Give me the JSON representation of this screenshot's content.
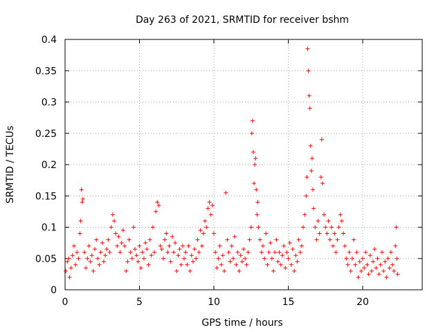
{
  "chart_data": {
    "type": "scatter",
    "title": "Day 263 of 2021, SRMTID for receiver bshm",
    "xlabel": "GPS time / hours",
    "ylabel": "SRMTID / TECUs",
    "xlim": [
      0,
      24
    ],
    "ylim": [
      0,
      0.4
    ],
    "xticks": [
      0,
      5,
      10,
      15,
      20
    ],
    "xtick_labels": [
      "0",
      "5",
      "10",
      "15",
      "20"
    ],
    "yticks": [
      0,
      0.05,
      0.1,
      0.15,
      0.2,
      0.25,
      0.3,
      0.35,
      0.4
    ],
    "ytick_labels": [
      "0",
      "0.05",
      "0.1",
      "0.15",
      "0.2",
      "0.25",
      "0.3",
      "0.35",
      "0.4"
    ],
    "grid": true,
    "marker": "+",
    "color": "#ff0000",
    "series": [
      {
        "name": "SRMTID",
        "points": [
          [
            0.05,
            0.03
          ],
          [
            0.15,
            0.045
          ],
          [
            0.25,
            0.05
          ],
          [
            0.3,
            0.02
          ],
          [
            0.4,
            0.035
          ],
          [
            0.5,
            0.055
          ],
          [
            0.6,
            0.07
          ],
          [
            0.7,
            0.04
          ],
          [
            0.8,
            0.06
          ],
          [
            0.9,
            0.05
          ],
          [
            1.0,
            0.09
          ],
          [
            1.05,
            0.11
          ],
          [
            1.1,
            0.16
          ],
          [
            1.15,
            0.14
          ],
          [
            1.2,
            0.145
          ],
          [
            1.3,
            0.06
          ],
          [
            1.4,
            0.035
          ],
          [
            1.5,
            0.05
          ],
          [
            1.6,
            0.07
          ],
          [
            1.7,
            0.045
          ],
          [
            1.8,
            0.055
          ],
          [
            1.9,
            0.03
          ],
          [
            2.0,
            0.065
          ],
          [
            2.1,
            0.08
          ],
          [
            2.2,
            0.05
          ],
          [
            2.3,
            0.04
          ],
          [
            2.4,
            0.06
          ],
          [
            2.5,
            0.075
          ],
          [
            2.6,
            0.045
          ],
          [
            2.7,
            0.055
          ],
          [
            2.8,
            0.065
          ],
          [
            2.9,
            0.08
          ],
          [
            3.0,
            0.06
          ],
          [
            3.1,
            0.1
          ],
          [
            3.2,
            0.12
          ],
          [
            3.3,
            0.11
          ],
          [
            3.4,
            0.09
          ],
          [
            3.5,
            0.07
          ],
          [
            3.6,
            0.085
          ],
          [
            3.7,
            0.06
          ],
          [
            3.8,
            0.075
          ],
          [
            3.9,
            0.095
          ],
          [
            4.0,
            0.07
          ],
          [
            4.1,
            0.03
          ],
          [
            4.2,
            0.045
          ],
          [
            4.3,
            0.08
          ],
          [
            4.4,
            0.06
          ],
          [
            4.5,
            0.05
          ],
          [
            4.6,
            0.1
          ],
          [
            4.7,
            0.065
          ],
          [
            4.8,
            0.055
          ],
          [
            4.9,
            0.045
          ],
          [
            5.0,
            0.07
          ],
          [
            5.1,
            0.035
          ],
          [
            5.2,
            0.06
          ],
          [
            5.3,
            0.05
          ],
          [
            5.4,
            0.075
          ],
          [
            5.5,
            0.065
          ],
          [
            5.6,
            0.04
          ],
          [
            5.7,
            0.08
          ],
          [
            5.8,
            0.055
          ],
          [
            5.9,
            0.1
          ],
          [
            6.0,
            0.06
          ],
          [
            6.1,
            0.125
          ],
          [
            6.2,
            0.14
          ],
          [
            6.3,
            0.135
          ],
          [
            6.4,
            0.07
          ],
          [
            6.5,
            0.065
          ],
          [
            6.6,
            0.05
          ],
          [
            6.7,
            0.08
          ],
          [
            6.8,
            0.09
          ],
          [
            6.9,
            0.06
          ],
          [
            7.0,
            0.07
          ],
          [
            7.1,
            0.045
          ],
          [
            7.2,
            0.085
          ],
          [
            7.3,
            0.06
          ],
          [
            7.4,
            0.075
          ],
          [
            7.5,
            0.03
          ],
          [
            7.6,
            0.055
          ],
          [
            7.7,
            0.065
          ],
          [
            7.8,
            0.04
          ],
          [
            7.9,
            0.07
          ],
          [
            8.0,
            0.05
          ],
          [
            8.1,
            0.06
          ],
          [
            8.2,
            0.04
          ],
          [
            8.3,
            0.07
          ],
          [
            8.4,
            0.03
          ],
          [
            8.5,
            0.055
          ],
          [
            8.6,
            0.045
          ],
          [
            8.7,
            0.065
          ],
          [
            8.8,
            0.05
          ],
          [
            8.9,
            0.08
          ],
          [
            9.0,
            0.06
          ],
          [
            9.1,
            0.095
          ],
          [
            9.2,
            0.07
          ],
          [
            9.3,
            0.09
          ],
          [
            9.4,
            0.11
          ],
          [
            9.5,
            0.1
          ],
          [
            9.6,
            0.13
          ],
          [
            9.7,
            0.14
          ],
          [
            9.8,
            0.12
          ],
          [
            9.9,
            0.135
          ],
          [
            10.0,
            0.09
          ],
          [
            10.1,
            0.06
          ],
          [
            10.2,
            0.035
          ],
          [
            10.3,
            0.05
          ],
          [
            10.4,
            0.07
          ],
          [
            10.5,
            0.04
          ],
          [
            10.6,
            0.055
          ],
          [
            10.7,
            0.03
          ],
          [
            10.8,
            0.155
          ],
          [
            10.9,
            0.08
          ],
          [
            11.0,
            0.06
          ],
          [
            11.1,
            0.045
          ],
          [
            11.2,
            0.07
          ],
          [
            11.3,
            0.05
          ],
          [
            11.4,
            0.085
          ],
          [
            11.5,
            0.04
          ],
          [
            11.6,
            0.06
          ],
          [
            11.7,
            0.03
          ],
          [
            11.8,
            0.055
          ],
          [
            11.9,
            0.045
          ],
          [
            12.0,
            0.065
          ],
          [
            12.1,
            0.05
          ],
          [
            12.2,
            0.04
          ],
          [
            12.3,
            0.06
          ],
          [
            12.4,
            0.08
          ],
          [
            12.5,
            0.1
          ],
          [
            12.55,
            0.25
          ],
          [
            12.6,
            0.27
          ],
          [
            12.65,
            0.22
          ],
          [
            12.7,
            0.17
          ],
          [
            12.75,
            0.2
          ],
          [
            12.8,
            0.21
          ],
          [
            12.85,
            0.16
          ],
          [
            12.9,
            0.12
          ],
          [
            12.95,
            0.14
          ],
          [
            13.0,
            0.1
          ],
          [
            13.1,
            0.08
          ],
          [
            13.2,
            0.06
          ],
          [
            13.3,
            0.07
          ],
          [
            13.4,
            0.05
          ],
          [
            13.5,
            0.09
          ],
          [
            13.6,
            0.04
          ],
          [
            13.7,
            0.06
          ],
          [
            13.8,
            0.075
          ],
          [
            13.9,
            0.05
          ],
          [
            14.0,
            0.03
          ],
          [
            14.1,
            0.06
          ],
          [
            14.2,
            0.08
          ],
          [
            14.3,
            0.045
          ],
          [
            14.4,
            0.06
          ],
          [
            14.5,
            0.04
          ],
          [
            14.6,
            0.055
          ],
          [
            14.7,
            0.07
          ],
          [
            14.8,
            0.035
          ],
          [
            14.9,
            0.06
          ],
          [
            15.0,
            0.05
          ],
          [
            15.1,
            0.075
          ],
          [
            15.2,
            0.04
          ],
          [
            15.3,
            0.065
          ],
          [
            15.4,
            0.03
          ],
          [
            15.5,
            0.055
          ],
          [
            15.6,
            0.045
          ],
          [
            15.7,
            0.08
          ],
          [
            15.8,
            0.06
          ],
          [
            15.9,
            0.07
          ],
          [
            16.0,
            0.1
          ],
          [
            16.1,
            0.12
          ],
          [
            16.2,
            0.15
          ],
          [
            16.25,
            0.18
          ],
          [
            16.3,
            0.385
          ],
          [
            16.35,
            0.35
          ],
          [
            16.4,
            0.31
          ],
          [
            16.45,
            0.29
          ],
          [
            16.5,
            0.23
          ],
          [
            16.55,
            0.19
          ],
          [
            16.6,
            0.21
          ],
          [
            16.65,
            0.16
          ],
          [
            16.7,
            0.13
          ],
          [
            16.8,
            0.1
          ],
          [
            16.9,
            0.08
          ],
          [
            17.0,
            0.11
          ],
          [
            17.1,
            0.09
          ],
          [
            17.2,
            0.18
          ],
          [
            17.25,
            0.24
          ],
          [
            17.3,
            0.17
          ],
          [
            17.4,
            0.12
          ],
          [
            17.5,
            0.1
          ],
          [
            17.6,
            0.09
          ],
          [
            17.7,
            0.11
          ],
          [
            17.8,
            0.08
          ],
          [
            17.9,
            0.1
          ],
          [
            18.0,
            0.07
          ],
          [
            18.1,
            0.09
          ],
          [
            18.2,
            0.06
          ],
          [
            18.3,
            0.08
          ],
          [
            18.4,
            0.1
          ],
          [
            18.5,
            0.12
          ],
          [
            18.6,
            0.11
          ],
          [
            18.7,
            0.09
          ],
          [
            18.8,
            0.07
          ],
          [
            18.9,
            0.05
          ],
          [
            19.0,
            0.04
          ],
          [
            19.1,
            0.06
          ],
          [
            19.2,
            0.03
          ],
          [
            19.3,
            0.05
          ],
          [
            19.4,
            0.08
          ],
          [
            19.5,
            0.04
          ],
          [
            19.6,
            0.06
          ],
          [
            19.7,
            0.02
          ],
          [
            19.8,
            0.045
          ],
          [
            19.9,
            0.03
          ],
          [
            20.0,
            0.05
          ],
          [
            20.1,
            0.035
          ],
          [
            20.2,
            0.06
          ],
          [
            20.3,
            0.04
          ],
          [
            20.4,
            0.025
          ],
          [
            20.5,
            0.055
          ],
          [
            20.6,
            0.03
          ],
          [
            20.7,
            0.045
          ],
          [
            20.8,
            0.065
          ],
          [
            20.9,
            0.035
          ],
          [
            21.0,
            0.05
          ],
          [
            21.1,
            0.025
          ],
          [
            21.2,
            0.04
          ],
          [
            21.3,
            0.06
          ],
          [
            21.4,
            0.03
          ],
          [
            21.5,
            0.045
          ],
          [
            21.6,
            0.02
          ],
          [
            21.7,
            0.05
          ],
          [
            21.8,
            0.035
          ],
          [
            21.9,
            0.06
          ],
          [
            22.0,
            0.04
          ],
          [
            22.1,
            0.03
          ],
          [
            22.2,
            0.07
          ],
          [
            22.25,
            0.1
          ],
          [
            22.3,
            0.05
          ],
          [
            22.35,
            0.025
          ]
        ]
      }
    ]
  }
}
